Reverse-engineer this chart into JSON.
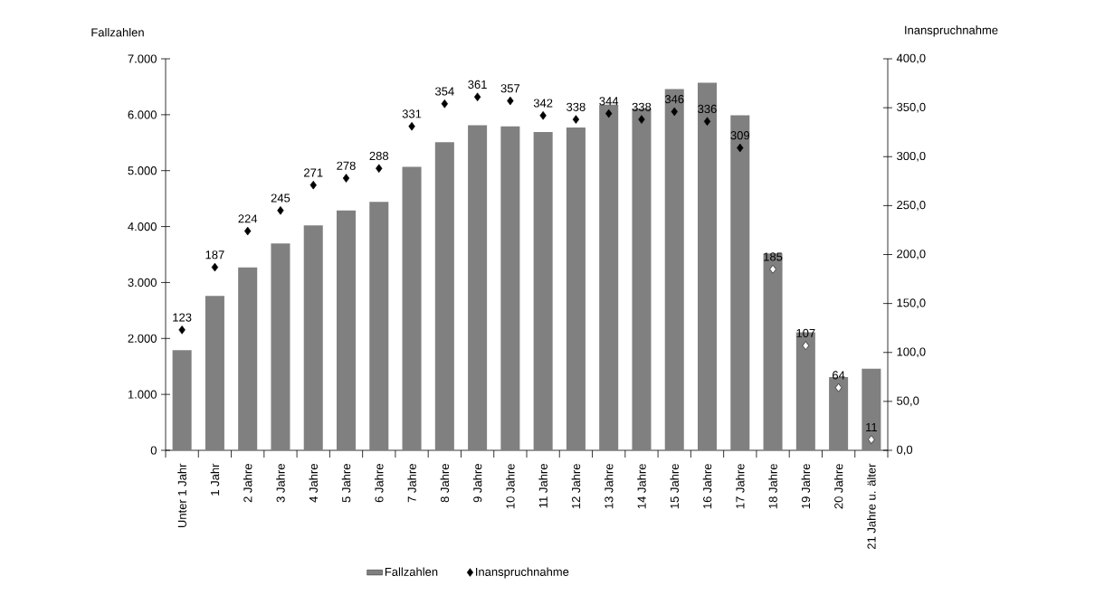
{
  "chart_data": {
    "type": "bar",
    "ylabel": "Fallzahlen",
    "y2label": "Inanspruchnahme",
    "categories": [
      "Unter 1 Jahr",
      "1 Jahr",
      "2 Jahre",
      "3 Jahre",
      "4 Jahre",
      "5 Jahre",
      "6 Jahre",
      "7 Jahre",
      "8 Jahre",
      "9 Jahre",
      "10 Jahre",
      "11 Jahre",
      "12 Jahre",
      "13 Jahre",
      "14 Jahre",
      "15 Jahre",
      "16 Jahre",
      "17 Jahre",
      "18 Jahre",
      "19 Jahre",
      "20 Jahre",
      "21 Jahre u. älter"
    ],
    "series": [
      {
        "name": "Fallzahlen",
        "color": "#808080",
        "values": [
          1790,
          2760,
          3270,
          3700,
          4020,
          4290,
          4440,
          5070,
          5510,
          5810,
          5790,
          5690,
          5770,
          6180,
          6110,
          6460,
          6570,
          5990,
          3520,
          2110,
          1310,
          1460
        ]
      },
      {
        "name": "Inanspruchnahme",
        "type": "scatter",
        "axis": "y2",
        "marker": "diamond",
        "colors": [
          "#000000",
          "#000000",
          "#000000",
          "#000000",
          "#000000",
          "#000000",
          "#000000",
          "#000000",
          "#000000",
          "#000000",
          "#000000",
          "#000000",
          "#000000",
          "#000000",
          "#000000",
          "#000000",
          "#000000",
          "#000000",
          "#ffffff",
          "#ffffff",
          "#ffffff",
          "#ffffff"
        ],
        "values": [
          123,
          187,
          224,
          245,
          271,
          278,
          288,
          331,
          354,
          361,
          357,
          342,
          338,
          344,
          338,
          346,
          336,
          309,
          185,
          107,
          64,
          11
        ],
        "value_labels": [
          "123",
          "187",
          "224",
          "245",
          "271",
          "278",
          "288",
          "331",
          "354",
          "361",
          "357",
          "342",
          "338",
          "344",
          "338",
          "346",
          "336",
          "309",
          "185",
          "107",
          "64",
          "11"
        ]
      }
    ],
    "ylim": [
      0,
      7000
    ],
    "yticks": [
      {
        "value": 0,
        "label": "0"
      },
      {
        "value": 1000,
        "label": "1.000"
      },
      {
        "value": 2000,
        "label": "2.000"
      },
      {
        "value": 3000,
        "label": "3.000"
      },
      {
        "value": 4000,
        "label": "4.000"
      },
      {
        "value": 5000,
        "label": "5.000"
      },
      {
        "value": 6000,
        "label": "6.000"
      },
      {
        "value": 7000,
        "label": "7.000"
      }
    ],
    "y2lim": [
      0,
      400
    ],
    "y2ticks": [
      {
        "value": 0,
        "label": "0,0"
      },
      {
        "value": 50,
        "label": "50,0"
      },
      {
        "value": 100,
        "label": "100,0"
      },
      {
        "value": 150,
        "label": "150,0"
      },
      {
        "value": 200,
        "label": "200,0"
      },
      {
        "value": 250,
        "label": "250,0"
      },
      {
        "value": 300,
        "label": "300,0"
      },
      {
        "value": 350,
        "label": "350,0"
      },
      {
        "value": 400,
        "label": "400,0"
      }
    ],
    "grid": false,
    "legend": "bottom"
  }
}
